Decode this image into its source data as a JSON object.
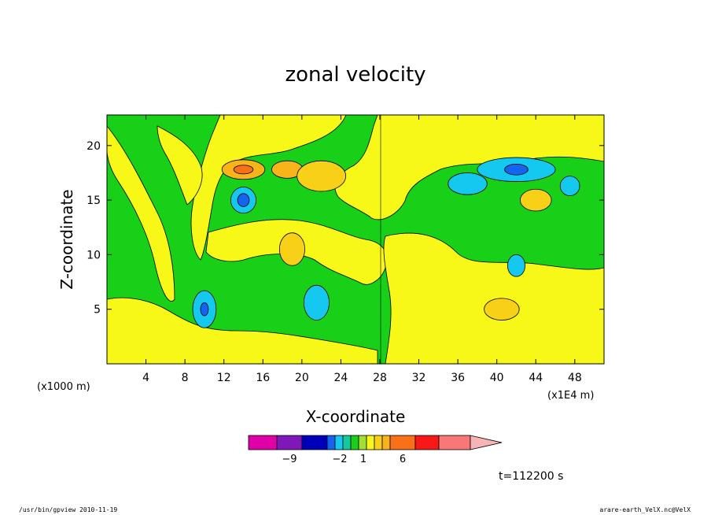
{
  "chart_data": {
    "type": "heatmap",
    "title": "zonal velocity",
    "xlabel": "X-coordinate",
    "ylabel": "Z-coordinate",
    "x_unit_label": "(x1E4 m)",
    "y_unit_label": "(x1000 m)",
    "x_ticks": [
      4,
      8,
      12,
      16,
      20,
      24,
      28,
      32,
      36,
      40,
      44,
      48
    ],
    "y_ticks": [
      5,
      10,
      15,
      20
    ],
    "xlim": [
      0,
      51
    ],
    "ylim": [
      0,
      22.8
    ],
    "colorbar": {
      "labels": [
        {
          "value": -9,
          "text": "−9"
        },
        {
          "value": -2,
          "text": "−2"
        },
        {
          "value": 1,
          "text": "1"
        },
        {
          "value": 6,
          "text": "6"
        }
      ],
      "colors": [
        "#e000a8",
        "#7f18b8",
        "#0000b8",
        "#1464f0",
        "#14c8f0",
        "#14c8a0",
        "#18d018",
        "#a0e030",
        "#f8f818",
        "#f8d018",
        "#f8b418",
        "#f87018",
        "#f81818",
        "#f87878",
        "#f8b4b4"
      ]
    },
    "regions": [
      {
        "x": 14,
        "z": 17.8,
        "rx": 2.2,
        "rz": 0.9,
        "level": "orange"
      },
      {
        "x": 14,
        "z": 17.8,
        "rx": 1.0,
        "rz": 0.4,
        "level": "red-orange"
      },
      {
        "x": 18.5,
        "z": 17.8,
        "rx": 1.6,
        "rz": 0.8,
        "level": "orange"
      },
      {
        "x": 22,
        "z": 17.2,
        "rx": 2.5,
        "rz": 1.4,
        "level": "light-orange"
      },
      {
        "x": 14,
        "z": 15,
        "rx": 1.3,
        "rz": 1.2,
        "level": "cyan"
      },
      {
        "x": 14,
        "z": 15,
        "rx": 0.6,
        "rz": 0.6,
        "level": "blue"
      },
      {
        "x": 42,
        "z": 17.8,
        "rx": 4.0,
        "rz": 1.1,
        "level": "cyan"
      },
      {
        "x": 42,
        "z": 17.8,
        "rx": 1.2,
        "rz": 0.5,
        "level": "blue"
      },
      {
        "x": 37,
        "z": 16.5,
        "rx": 2.0,
        "rz": 1.0,
        "level": "cyan"
      },
      {
        "x": 47.5,
        "z": 16.3,
        "rx": 1.0,
        "rz": 0.9,
        "level": "cyan"
      },
      {
        "x": 10,
        "z": 5,
        "rx": 1.2,
        "rz": 1.7,
        "level": "cyan"
      },
      {
        "x": 10,
        "z": 5,
        "rx": 0.4,
        "rz": 0.6,
        "level": "blue"
      },
      {
        "x": 21.5,
        "z": 5.6,
        "rx": 1.3,
        "rz": 1.6,
        "level": "cyan"
      },
      {
        "x": 42,
        "z": 9,
        "rx": 0.9,
        "rz": 1.0,
        "level": "cyan"
      },
      {
        "x": 40.5,
        "z": 5,
        "rx": 1.8,
        "rz": 1.0,
        "level": "light-orange"
      },
      {
        "x": 44,
        "z": 15,
        "rx": 1.6,
        "rz": 1.0,
        "level": "light-orange"
      },
      {
        "x": 19,
        "z": 10.5,
        "rx": 1.3,
        "rz": 1.5,
        "level": "light-orange"
      }
    ]
  },
  "time_label": "t=112200 s",
  "footer_left": "/usr/bin/gpview  2010-11-19",
  "footer_right": "arare-earth_VelX.nc@VelX"
}
